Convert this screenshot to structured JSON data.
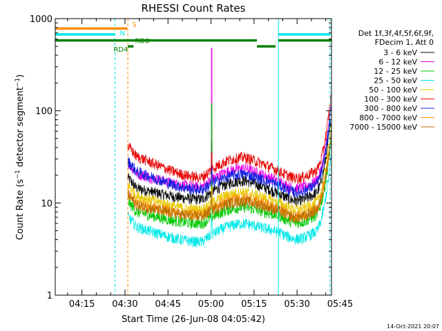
{
  "chart_data": {
    "type": "line",
    "title": "RHESSI Count Rates",
    "xlabel": "Start Time (26-Jun-08 04:05:42)",
    "ylabel_main": "Count Rate (s",
    "ylabel_sup": "−1",
    "ylabel_mid": " detector segment",
    "ylabel_end": ")",
    "yscale": "log",
    "ylim": [
      1,
      1000
    ],
    "xlim_minutes": [
      5.7,
      102.0
    ],
    "x_ticks": [
      {
        "label": "04:15",
        "m": 15
      },
      {
        "label": "04:30",
        "m": 30
      },
      {
        "label": "04:45",
        "m": 45
      },
      {
        "label": "05:00",
        "m": 60
      },
      {
        "label": "05:15",
        "m": 75
      },
      {
        "label": "05:30",
        "m": 90
      },
      {
        "label": "05:45",
        "m": 105
      }
    ],
    "y_ticks": [
      {
        "label": "1",
        "v": 1
      },
      {
        "label": "10",
        "v": 10
      },
      {
        "label": "100",
        "v": 100
      },
      {
        "label": "1000",
        "v": 1000
      }
    ],
    "legend_header": [
      "Det 1f,3f,4f,5f,6f,9f,",
      "FDecim 1, Att 0"
    ],
    "series": [
      {
        "name": "3 - 6 keV",
        "color": "#000000",
        "start": 14.5,
        "mid": 14,
        "end": 12.5,
        "dip": 11
      },
      {
        "name": "6 - 12 keV",
        "color": "#e800e8",
        "start": 21,
        "mid": 19,
        "end": 17,
        "dip": 15
      },
      {
        "name": "12 - 25 keV",
        "color": "#00c800",
        "start": 8,
        "mid": 7.2,
        "end": 7.2,
        "dip": 6.0
      },
      {
        "name": "25 - 50 keV",
        "color": "#00e8e8",
        "start": 5.5,
        "mid": 4.8,
        "end": 4.8,
        "dip": 3.8
      },
      {
        "name": "50 - 100 keV",
        "color": "#e8c800",
        "start": 12,
        "mid": 10.5,
        "end": 10,
        "dip": 8.5
      },
      {
        "name": "100 - 300 keV",
        "color": "#e80000",
        "start": 32,
        "mid": 25,
        "end": 22,
        "dip": 19
      },
      {
        "name": "300 - 800 keV",
        "color": "#1020e0",
        "start": 22,
        "mid": 16.5,
        "end": 15.5,
        "dip": 14
      },
      {
        "name": "800 - 7000 keV",
        "color": "#ff8c00",
        "start": 10,
        "mid": 9,
        "end": 8.5,
        "dip": 7.5
      },
      {
        "name": "7000 - 15000 keV",
        "color": "#b87000",
        "start": 9.5,
        "mid": 8.4,
        "end": 8.2,
        "dip": 7.2
      }
    ],
    "orbit_flags": [
      {
        "label": "S",
        "color": "#ff8c00",
        "value": 780,
        "from": 5.7,
        "to": 30.8
      },
      {
        "label": "N",
        "color": "#00e8e8",
        "value": 675,
        "from": 5.7,
        "to": 26.5
      },
      {
        "label": "N",
        "color": "#00e8e8",
        "value": 675,
        "from": 83.5,
        "to": 101.5
      },
      {
        "label": "RD0",
        "color": "#008000",
        "value": 580,
        "from": 5.7,
        "to": 76.0
      },
      {
        "label": "RD0",
        "color": "#008000",
        "value": 580,
        "from": 83.5,
        "to": 102.0
      },
      {
        "label": "RD4",
        "color": "#008000",
        "value": 500,
        "from": 31.0,
        "to": 33.0
      },
      {
        "label": "RD4",
        "color": "#008000",
        "value": 500,
        "from": 76.0,
        "to": 82.5
      }
    ],
    "vertical_markers": [
      {
        "m": 5.7,
        "color": "#00e8e8",
        "style": "solid"
      },
      {
        "m": 26.5,
        "color": "#00e8e8",
        "style": "dashed"
      },
      {
        "m": 31.0,
        "color": "#ff8c00",
        "style": "dashed"
      },
      {
        "m": 83.5,
        "color": "#00e8e8",
        "style": "solid"
      },
      {
        "m": 101.5,
        "color": "#00e8e8",
        "style": "dashed"
      }
    ],
    "flag_labels": [
      {
        "text": "S",
        "color": "#ff8c00",
        "m": 32.5,
        "v": 870
      },
      {
        "text": "N",
        "color": "#00e8e8",
        "m": 28.2,
        "v": 700
      },
      {
        "text": "RD0",
        "color": "#008000",
        "m": 33.5,
        "v": 580
      },
      {
        "text": "RD4",
        "color": "#008000",
        "m": 26.0,
        "v": 470
      }
    ],
    "data_start_m": 31.0,
    "data_end_m": 101.8,
    "spike": {
      "m": 60.2,
      "peak": 480
    },
    "footer": "14-Oct-2021 20:07"
  }
}
